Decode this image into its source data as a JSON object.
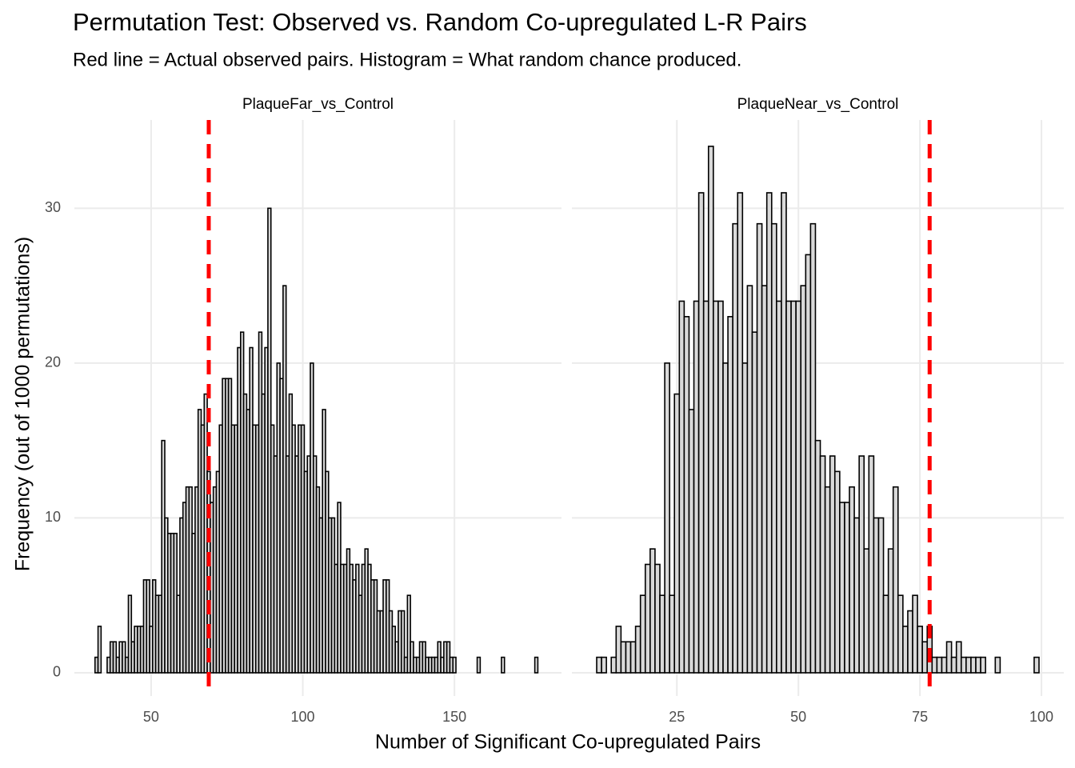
{
  "title": "Permutation Test: Observed vs. Random Co-upregulated L-R Pairs",
  "subtitle": "Red line = Actual observed pairs. Histogram = What random chance produced.",
  "x_label": "Number of Significant Co-upregulated Pairs",
  "y_label": "Frequency (out of 1000 permutations)",
  "chart_data": [
    {
      "type": "histogram",
      "panel": "PlaqueFar_vs_Control",
      "bins": [
        31.5,
        32.5,
        33.5,
        34.5,
        35.5,
        36.5,
        37.5,
        38.5,
        39.5,
        40.5,
        41.5,
        42.5,
        43.5,
        44.5,
        45.5,
        46.5,
        47.5,
        48.5,
        49.5,
        50.5,
        51.5,
        52.5,
        53.5,
        54.5,
        55.5,
        56.5,
        57.5,
        58.5,
        59.5,
        60.5,
        61.5,
        62.5,
        63.5,
        64.5,
        65.5,
        66.5,
        67.5,
        68.5,
        69.5,
        70.5,
        71.5,
        72.5,
        73.5,
        74.5,
        75.5,
        76.5,
        77.5,
        78.5,
        79.5,
        80.5,
        81.5,
        82.5,
        83.5,
        84.5,
        85.5,
        86.5,
        87.5,
        88.5,
        89.5,
        90.5,
        91.5,
        92.5,
        93.5,
        94.5,
        95.5,
        96.5,
        97.5,
        98.5,
        99.5,
        100.5,
        101.5,
        102.5,
        103.5,
        104.5,
        105.5,
        106.5,
        107.5,
        108.5,
        109.5,
        110.5,
        111.5,
        112.5,
        113.5,
        114.5,
        115.5,
        116.5,
        117.5,
        118.5,
        119.5,
        120.5,
        121.5,
        122.5,
        123.5,
        124.5,
        125.5,
        126.5,
        127.5,
        128.5,
        129.5,
        130.5,
        131.5,
        132.5,
        133.5,
        134.5,
        135.5,
        136.5,
        137.5,
        138.5,
        139.5,
        140.5,
        141.5,
        142.5,
        143.5,
        144.5,
        145.5,
        146.5,
        147.5,
        148.5,
        149.5,
        150.5,
        151.5,
        152.5,
        153.5,
        154.5,
        155.5,
        156.5,
        157.5,
        158.5,
        159.5,
        160.5,
        161.5,
        162.5,
        163.5,
        164.5,
        165.5,
        166.5,
        167.5,
        168.5,
        169.5,
        170.5,
        171.5,
        172.5,
        173.5,
        174.5,
        175.5,
        176.5,
        177.5
      ],
      "counts": [
        1,
        3,
        0,
        0,
        1,
        2,
        2,
        1,
        2,
        2,
        1,
        5,
        2,
        3,
        3,
        3,
        6,
        6,
        3,
        6,
        5,
        5,
        15,
        10,
        9,
        9,
        9,
        5,
        10,
        11,
        12,
        12,
        9,
        12,
        17,
        16,
        18,
        13,
        11,
        12,
        13,
        16,
        19,
        19,
        19,
        16,
        16,
        21,
        22,
        18,
        17,
        21,
        16,
        16,
        22,
        18,
        21,
        30,
        16,
        14,
        20,
        19,
        25,
        14,
        18,
        16,
        14,
        16,
        16,
        13,
        14,
        20,
        14,
        12,
        10,
        17,
        13,
        10,
        10,
        7,
        11,
        7,
        7,
        8,
        7,
        6,
        7,
        5,
        7,
        8,
        7,
        6,
        6,
        4,
        4,
        6,
        6,
        4,
        3,
        2,
        4,
        4,
        1,
        5,
        2,
        1,
        1,
        2,
        2,
        1,
        1,
        1,
        1,
        2,
        1,
        2,
        2,
        1,
        1,
        0,
        0,
        0,
        0,
        0,
        0,
        0,
        1,
        0,
        0,
        0,
        0,
        0,
        0,
        0,
        1,
        0,
        0,
        0,
        0,
        0,
        0,
        0,
        0,
        0,
        0,
        1
      ],
      "observed": 69,
      "observed_color": "#ff0000",
      "fill": "#d9d9d9",
      "edgecolor": "#000000",
      "xlim": [
        24.7,
        185.3
      ],
      "xticks": [
        50,
        100,
        150
      ],
      "ylim": [
        -1.5,
        35.7
      ],
      "yticks": [
        0,
        10,
        20,
        30
      ],
      "grid": true
    },
    {
      "type": "histogram",
      "panel": "PlaqueNear_vs_Control",
      "bins": [
        8.5,
        9.5,
        10.5,
        11.5,
        12.5,
        13.5,
        14.5,
        15.5,
        16.5,
        17.5,
        18.5,
        19.5,
        20.5,
        21.5,
        22.5,
        23.5,
        24.5,
        25.5,
        26.5,
        27.5,
        28.5,
        29.5,
        30.5,
        31.5,
        32.5,
        33.5,
        34.5,
        35.5,
        36.5,
        37.5,
        38.5,
        39.5,
        40.5,
        41.5,
        42.5,
        43.5,
        44.5,
        45.5,
        46.5,
        47.5,
        48.5,
        49.5,
        50.5,
        51.5,
        52.5,
        53.5,
        54.5,
        55.5,
        56.5,
        57.5,
        58.5,
        59.5,
        60.5,
        61.5,
        62.5,
        63.5,
        64.5,
        65.5,
        66.5,
        67.5,
        68.5,
        69.5,
        70.5,
        71.5,
        72.5,
        73.5,
        74.5,
        75.5,
        76.5,
        77.5,
        78.5,
        79.5,
        80.5,
        81.5,
        82.5,
        83.5,
        84.5,
        85.5,
        86.5,
        87.5,
        88.5,
        89.5,
        90.5,
        91.5,
        92.5,
        93.5,
        94.5,
        95.5,
        96.5,
        97.5,
        98.5,
        99.5
      ],
      "counts": [
        1,
        1,
        0,
        1,
        3,
        2,
        2,
        2,
        3,
        5,
        7,
        8,
        7,
        5,
        20,
        5,
        18,
        24,
        23,
        17,
        24,
        31,
        24,
        34,
        24,
        24,
        20,
        23,
        29,
        31,
        20,
        25,
        22,
        29,
        25,
        31,
        29,
        24,
        31,
        24,
        24,
        24,
        25,
        27,
        29,
        15,
        14,
        12,
        14,
        13,
        11,
        11,
        12,
        10,
        14,
        8,
        14,
        10,
        10,
        5,
        8,
        12,
        5,
        3,
        4,
        5,
        3,
        2,
        3,
        1,
        1,
        1,
        2,
        1,
        2,
        1,
        1,
        1,
        1,
        1,
        0,
        0,
        1,
        0,
        0,
        0,
        0,
        0,
        0,
        0,
        1
      ],
      "observed": 77,
      "observed_color": "#ff0000",
      "fill": "#d9d9d9",
      "edgecolor": "#000000",
      "xlim": [
        3.4,
        104.6
      ],
      "xticks": [
        25,
        50,
        75,
        100
      ],
      "ylim": [
        -1.5,
        35.7
      ],
      "yticks": [
        0,
        10,
        20,
        30
      ],
      "grid": true
    }
  ]
}
